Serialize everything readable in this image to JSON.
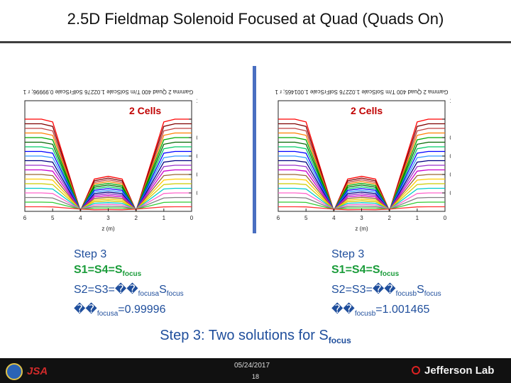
{
  "title": "2.5D Fieldmap Solenoid Focused at Quad (Quads On)",
  "left_plot": {
    "cells_label": "2 Cells",
    "header": "Gamma 2 Quad 400 T/m SolScale 1.02276 SolFrScale 0.99996; r 1",
    "xlabel": "z (m)",
    "ylabel": "r (mm)",
    "x_ticks": [
      "0",
      "1",
      "2",
      "3",
      "4",
      "5",
      "6"
    ],
    "y_ticks": [
      "0",
      "0.2",
      "0.4",
      "0.6",
      "0.8",
      "1",
      "1.2"
    ]
  },
  "right_plot": {
    "cells_label": "2 Cells",
    "header": "Gamma 2 Quad 400 T/m SolScale 1.02276 SolFrScale 1.001465; r 1",
    "xlabel": "z (m)",
    "ylabel": "r (mm)",
    "x_ticks": [
      "0",
      "1",
      "2",
      "3",
      "4",
      "5",
      "6"
    ],
    "y_ticks": [
      "0",
      "0.2",
      "0.4",
      "0.6",
      "0.8",
      "1",
      "1.2"
    ]
  },
  "left_step": {
    "heading": "Step 3",
    "line1_prefix": "S1=S4=S",
    "line1_sub": "focus",
    "line2_prefix": "S2=S3=��",
    "line2_sub1": "focusa",
    "line2_mid": "S",
    "line2_sub2": "focus",
    "line3_prefix": "��",
    "line3_sub": "focusa",
    "line3_value": "=0.99996"
  },
  "right_step": {
    "heading": "Step 3",
    "line1_prefix": "S1=S4=S",
    "line1_sub": "focus",
    "line2_prefix": "S2=S3=��",
    "line2_sub1": "focusb",
    "line2_mid": "S",
    "line2_sub2": "focus",
    "line3_prefix": "��",
    "line3_sub": "focusb",
    "line3_value": "=1.001465"
  },
  "summary": {
    "text": "Step 3: Two solutions for S",
    "sub": "focus"
  },
  "footer": {
    "date": "05/24/2017",
    "page": "18",
    "left_logo_text": "JSA",
    "right_logo_text": "Jefferson Lab"
  },
  "colors": {
    "accent_blue": "#1f4e9c",
    "green": "#1a9c3a",
    "red": "#c00000",
    "divider": "#4a6fc1"
  },
  "icons": {
    "left_logo": "doe-seal-icon",
    "right_logo": "jefferson-lab-icon"
  },
  "chart_data": [
    {
      "type": "line",
      "header": "Gamma 2 Quad 400 T/m SolScale 1.02276 SolFrScale 0.99996; r 1",
      "xlabel": "z (m)",
      "ylabel": "r (mm)",
      "x_reversed": true,
      "xlim": [
        0,
        6
      ],
      "ylim": [
        0,
        1.2
      ],
      "initial_radii": [
        1.0,
        0.95,
        0.9,
        0.85,
        0.8,
        0.75,
        0.7,
        0.65,
        0.6,
        0.55,
        0.5,
        0.45,
        0.4,
        0.35,
        0.3,
        0.25,
        0.2,
        0.15,
        0.1,
        0.05
      ],
      "focus_points_z": [
        2,
        4
      ],
      "grid": false
    },
    {
      "type": "line",
      "header": "Gamma 2 Quad 400 T/m SolScale 1.02276 SolFrScale 1.001465; r 1",
      "xlabel": "z (m)",
      "ylabel": "r (mm)",
      "x_reversed": true,
      "xlim": [
        0,
        6
      ],
      "ylim": [
        0,
        1.2
      ],
      "initial_radii": [
        1.0,
        0.95,
        0.9,
        0.85,
        0.8,
        0.75,
        0.7,
        0.65,
        0.6,
        0.55,
        0.5,
        0.45,
        0.4,
        0.35,
        0.3,
        0.25,
        0.2,
        0.15,
        0.1,
        0.05
      ],
      "focus_points_z": [
        2,
        4
      ],
      "grid": false
    }
  ]
}
